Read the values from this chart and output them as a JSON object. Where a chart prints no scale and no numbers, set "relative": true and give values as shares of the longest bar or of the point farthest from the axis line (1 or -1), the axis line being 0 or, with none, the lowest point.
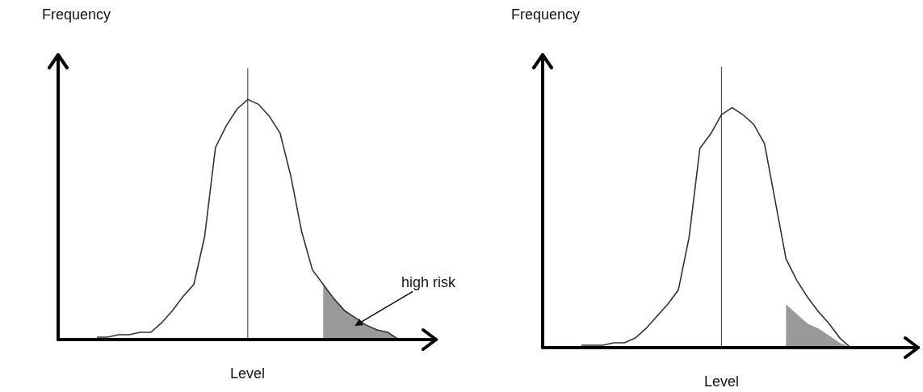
{
  "chart_data": [
    {
      "type": "line",
      "relative": true,
      "xlabel": "Level",
      "ylabel": "Frequency",
      "annotations": [
        "high risk"
      ],
      "categories": [
        null,
        null,
        null,
        null,
        null,
        null,
        null,
        null,
        null,
        null,
        null,
        null,
        null,
        null,
        null,
        null,
        null,
        null,
        null,
        null,
        null,
        null,
        null,
        null,
        null,
        null,
        null,
        null,
        null,
        null,
        null,
        null,
        null,
        null,
        null,
        null,
        null
      ],
      "series": [
        {
          "color": "#333333",
          "values": [
            null,
            null,
            null,
            null,
            0.01,
            0.01,
            0.02,
            0.02,
            0.03,
            0.03,
            0.07,
            0.12,
            0.18,
            0.23,
            0.43,
            0.8,
            0.89,
            0.96,
            1,
            0.98,
            0.93,
            0.86,
            0.68,
            0.45,
            0.29,
            0.23,
            0.17,
            0.12,
            0.09,
            0.06,
            0.04,
            0.03,
            0,
            null,
            null,
            null,
            null
          ]
        },
        {
          "type": "area",
          "color": "#999999",
          "values": [
            null,
            null,
            null,
            null,
            null,
            null,
            null,
            null,
            null,
            null,
            null,
            null,
            null,
            null,
            null,
            null,
            null,
            null,
            null,
            null,
            null,
            null,
            null,
            null,
            null,
            0.23,
            0.17,
            0.12,
            0.09,
            0.06,
            0.04,
            0.03,
            0,
            null,
            null,
            null,
            null
          ]
        }
      ]
    },
    {
      "type": "line",
      "relative": true,
      "xlabel": "Level",
      "ylabel": "Frequency",
      "categories": [
        null,
        null,
        null,
        null,
        null,
        null,
        null,
        null,
        null,
        null,
        null,
        null,
        null,
        null,
        null,
        null,
        null,
        null,
        null,
        null,
        null,
        null,
        null,
        null,
        null,
        null,
        null,
        null,
        null,
        null,
        null,
        null,
        null,
        null,
        null,
        null,
        null
      ],
      "series": [
        {
          "color": "#333333",
          "values": [
            null,
            null,
            null,
            null,
            null,
            0.01,
            0.01,
            0.01,
            0.02,
            0.02,
            0.04,
            0.08,
            0.13,
            0.18,
            0.24,
            0.46,
            0.83,
            0.89,
            0.97,
            1,
            0.97,
            0.93,
            0.85,
            0.61,
            0.37,
            0.28,
            0.21,
            0.15,
            0.1,
            0.04,
            0,
            null,
            null,
            null,
            null,
            null,
            null
          ]
        },
        {
          "type": "area",
          "color": "#999999",
          "values": [
            null,
            null,
            null,
            null,
            null,
            null,
            null,
            null,
            null,
            null,
            null,
            null,
            null,
            null,
            null,
            null,
            null,
            null,
            null,
            null,
            null,
            null,
            null,
            null,
            0.18,
            0.14,
            0.1,
            0.08,
            0.05,
            0.02,
            0,
            null,
            null,
            null,
            null,
            null,
            null
          ]
        }
      ]
    }
  ]
}
